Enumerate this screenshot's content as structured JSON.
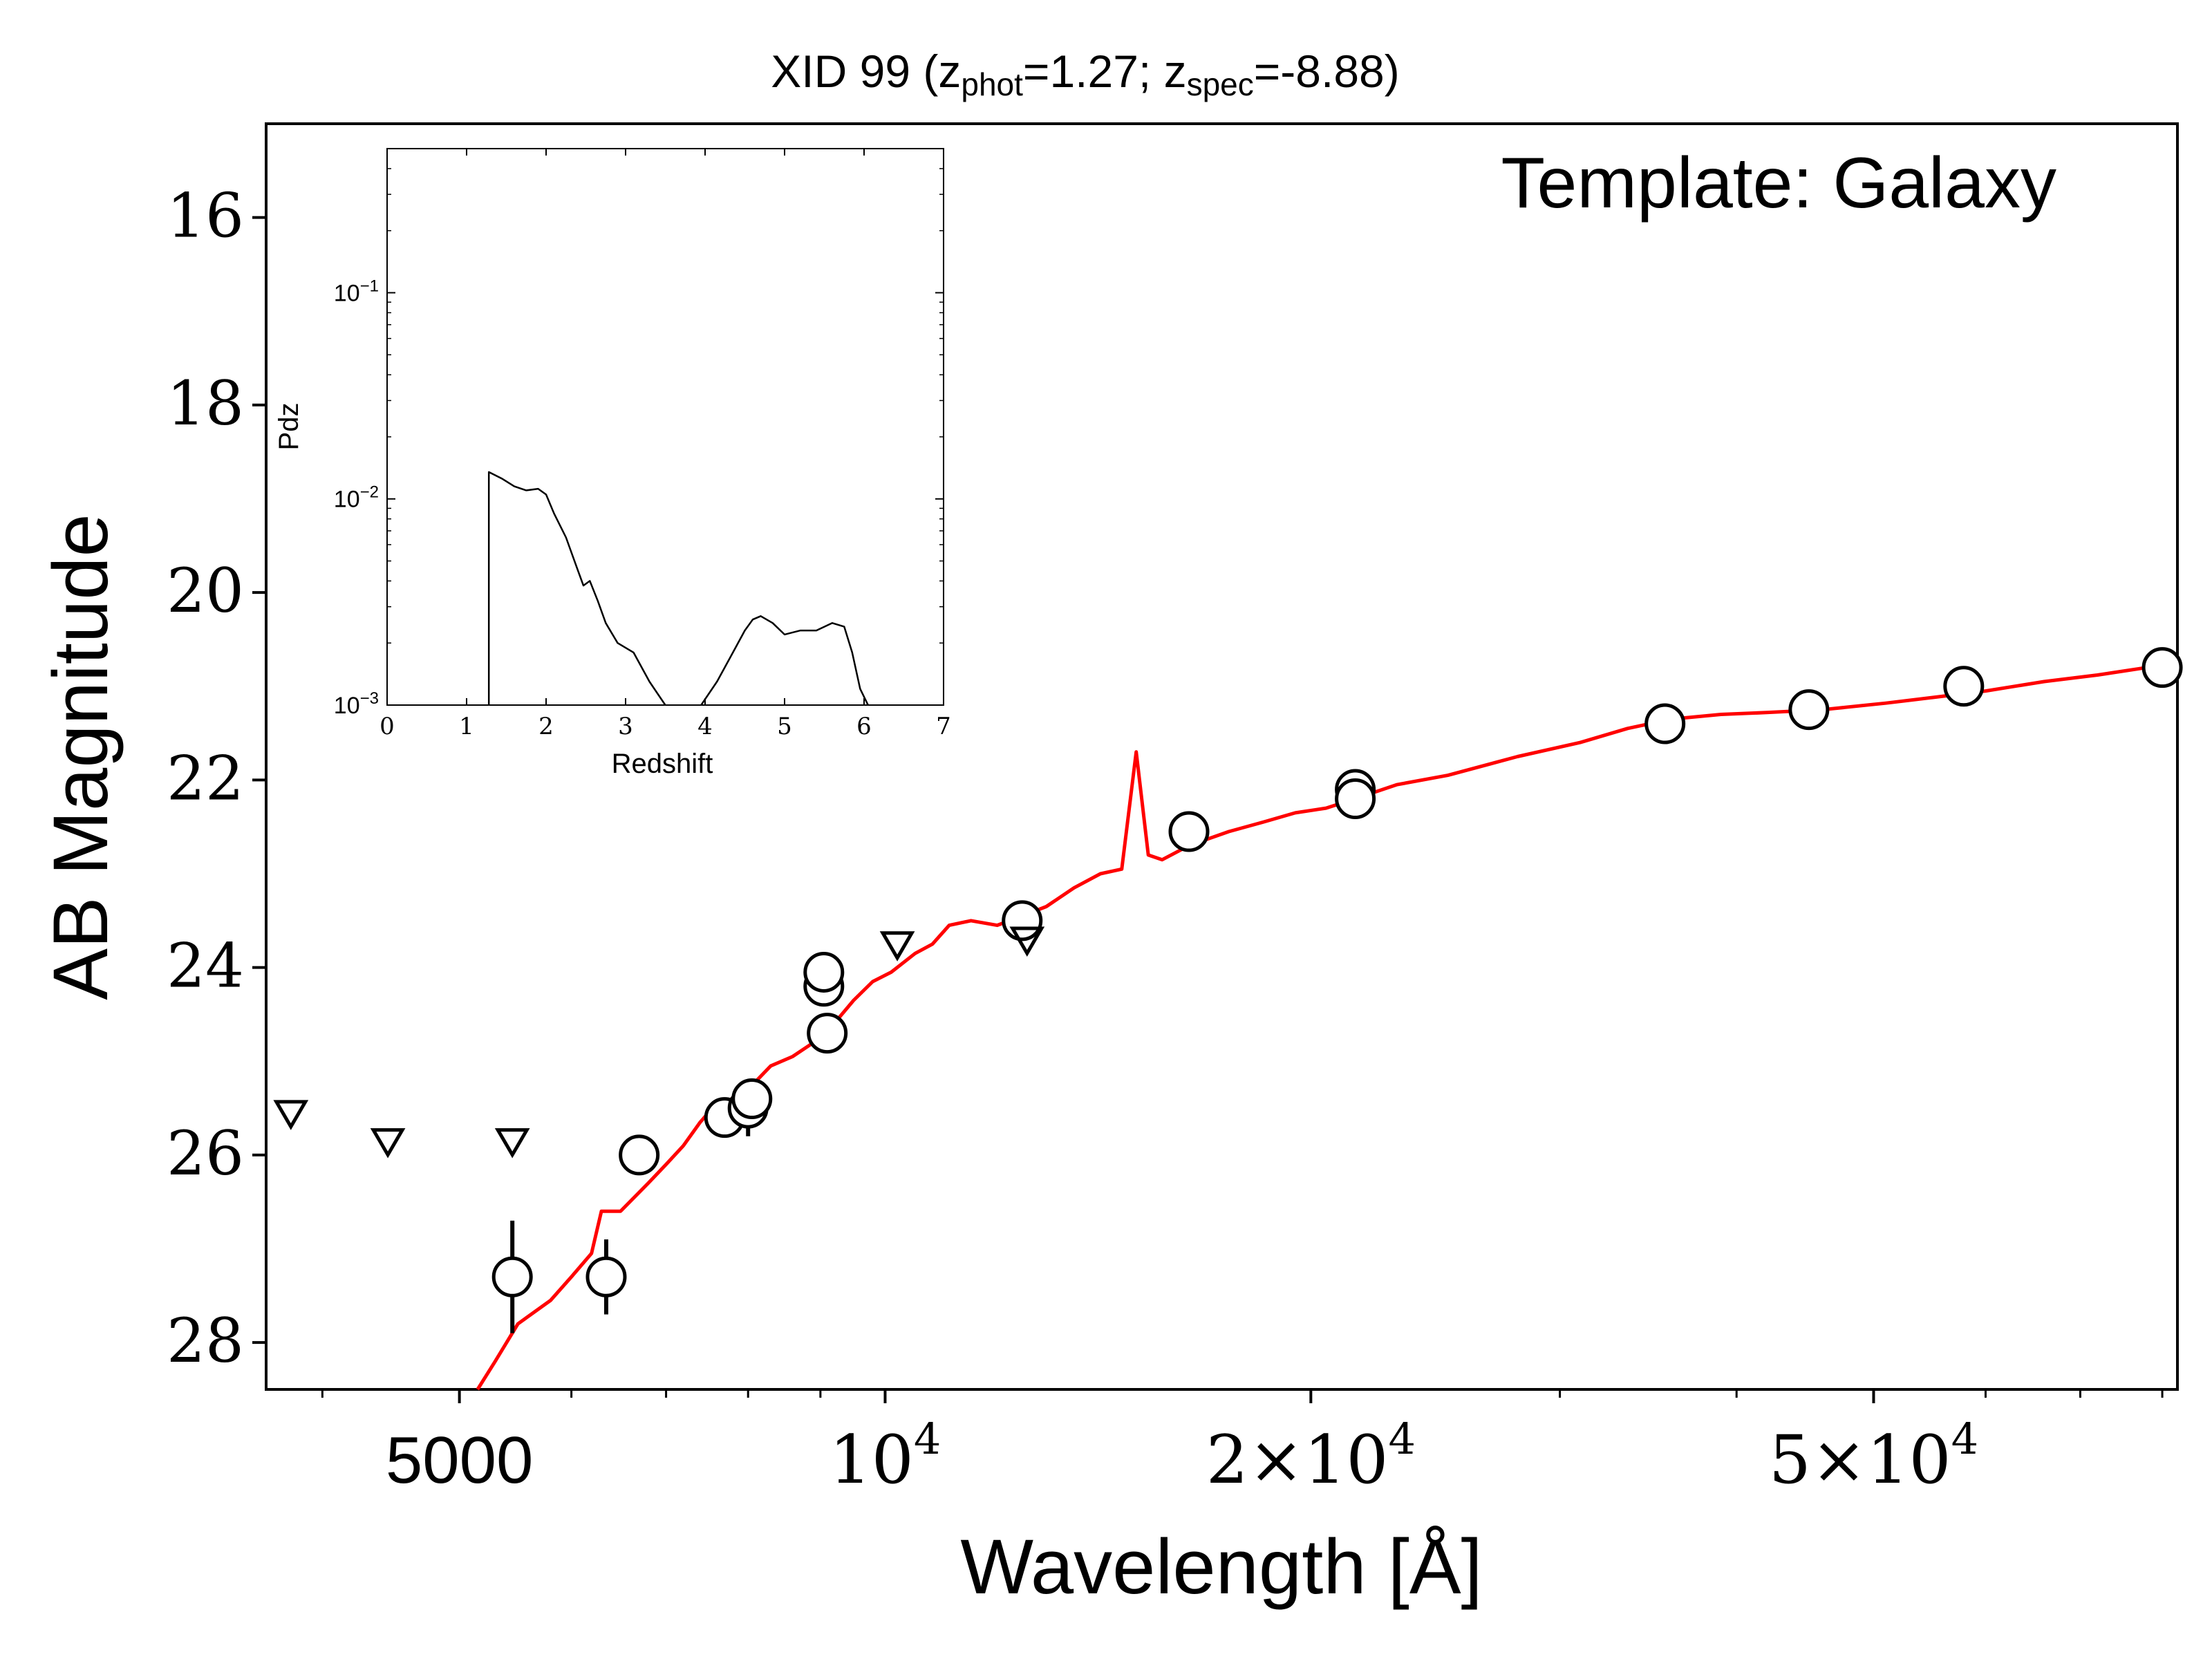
{
  "chart_data": [
    {
      "type": "scatter",
      "title_main": "XID 99 (z",
      "title_sub1": "phot",
      "title_mid": "=1.27; z",
      "title_sub2": "spec",
      "title_end": "=-8.88)",
      "annotation": "Template: Galaxy",
      "xlabel": "Wavelength [Å]",
      "ylabel": "AB Magnitude",
      "x_scale": "log",
      "xlim": [
        3650,
        82000
      ],
      "ylim": [
        28.5,
        15.0
      ],
      "y_inverted": true,
      "x_ticks": [
        {
          "value": 5000,
          "base": "5000",
          "exp": ""
        },
        {
          "value": 10000,
          "base": "10",
          "exp": "4"
        },
        {
          "value": 20000,
          "base": "2×10",
          "exp": "4"
        },
        {
          "value": 50000,
          "base": "5×10",
          "exp": "4"
        }
      ],
      "y_ticks": [
        {
          "value": 16,
          "label": "16"
        },
        {
          "value": 18,
          "label": "18"
        },
        {
          "value": 20,
          "label": "20"
        },
        {
          "value": 22,
          "label": "22"
        },
        {
          "value": 24,
          "label": "24"
        },
        {
          "value": 26,
          "label": "26"
        },
        {
          "value": 28,
          "label": "28"
        }
      ],
      "detections": [
        {
          "x": 5450,
          "y": 27.3,
          "err": 0.6
        },
        {
          "x": 6350,
          "y": 27.3,
          "err": 0.4
        },
        {
          "x": 6700,
          "y": 26.0,
          "err": 0.1
        },
        {
          "x": 7700,
          "y": 25.6,
          "err": 0.1
        },
        {
          "x": 8000,
          "y": 25.5,
          "err": 0.3
        },
        {
          "x": 8050,
          "y": 25.4,
          "err": 0.2
        },
        {
          "x": 9050,
          "y": 24.2,
          "err": 0.15
        },
        {
          "x": 9050,
          "y": 24.05,
          "err": 0.15
        },
        {
          "x": 9100,
          "y": 24.7,
          "err": 0.1
        },
        {
          "x": 12500,
          "y": 23.5,
          "err": 0.1
        },
        {
          "x": 16400,
          "y": 22.55,
          "err": 0.05
        },
        {
          "x": 21500,
          "y": 22.1,
          "err": 0.05
        },
        {
          "x": 21500,
          "y": 22.2,
          "err": 0.05
        },
        {
          "x": 35600,
          "y": 21.4,
          "err": 0.05
        },
        {
          "x": 45000,
          "y": 21.25,
          "err": 0.05
        },
        {
          "x": 57900,
          "y": 21.0,
          "err": 0.05
        },
        {
          "x": 80000,
          "y": 20.8,
          "err": 0.05
        }
      ],
      "upper_limits": [
        {
          "x": 3800,
          "y": 25.55
        },
        {
          "x": 4450,
          "y": 25.85
        },
        {
          "x": 5450,
          "y": 25.85
        },
        {
          "x": 10200,
          "y": 23.75
        },
        {
          "x": 12600,
          "y": 23.7
        }
      ],
      "template_color": "#ff0000",
      "template_curve": [
        [
          5150,
          28.5
        ],
        [
          5300,
          28.2
        ],
        [
          5500,
          27.8
        ],
        [
          5800,
          27.55
        ],
        [
          6000,
          27.3
        ],
        [
          6200,
          27.05
        ],
        [
          6300,
          26.6
        ],
        [
          6500,
          26.6
        ],
        [
          6800,
          26.3
        ],
        [
          7000,
          26.1
        ],
        [
          7200,
          25.9
        ],
        [
          7400,
          25.65
        ],
        [
          7600,
          25.45
        ],
        [
          7800,
          25.4
        ],
        [
          8000,
          25.3
        ],
        [
          8300,
          25.05
        ],
        [
          8600,
          24.95
        ],
        [
          8900,
          24.8
        ],
        [
          9200,
          24.6
        ],
        [
          9500,
          24.35
        ],
        [
          9800,
          24.15
        ],
        [
          10100,
          24.05
        ],
        [
          10500,
          23.85
        ],
        [
          10800,
          23.75
        ],
        [
          11100,
          23.55
        ],
        [
          11500,
          23.5
        ],
        [
          12000,
          23.55
        ],
        [
          12500,
          23.45
        ],
        [
          13000,
          23.35
        ],
        [
          13600,
          23.15
        ],
        [
          14200,
          23.0
        ],
        [
          14700,
          22.95
        ],
        [
          15050,
          21.7
        ],
        [
          15350,
          22.8
        ],
        [
          15700,
          22.85
        ],
        [
          16400,
          22.7
        ],
        [
          17500,
          22.55
        ],
        [
          18500,
          22.45
        ],
        [
          19500,
          22.35
        ],
        [
          20500,
          22.3
        ],
        [
          21500,
          22.2
        ],
        [
          23000,
          22.05
        ],
        [
          25000,
          21.95
        ],
        [
          28000,
          21.75
        ],
        [
          31000,
          21.6
        ],
        [
          33500,
          21.45
        ],
        [
          36000,
          21.35
        ],
        [
          39000,
          21.3
        ],
        [
          42000,
          21.28
        ],
        [
          46000,
          21.25
        ],
        [
          51000,
          21.18
        ],
        [
          55000,
          21.12
        ],
        [
          60000,
          21.05
        ],
        [
          66000,
          20.95
        ],
        [
          72000,
          20.88
        ],
        [
          78000,
          20.8
        ],
        [
          82000,
          20.75
        ]
      ]
    },
    {
      "type": "line",
      "xlabel": "Redshift",
      "ylabel": "Pdz",
      "x_scale": "linear",
      "y_scale": "log",
      "xlim": [
        0,
        7
      ],
      "ylim": [
        0.001,
        0.5
      ],
      "x_ticks": [
        "0",
        "1",
        "2",
        "3",
        "4",
        "5",
        "6",
        "7"
      ],
      "y_ticks": [
        {
          "value": 0.1,
          "base": "10",
          "exp": "−1"
        },
        {
          "value": 0.01,
          "base": "10",
          "exp": "−2"
        },
        {
          "value": 0.001,
          "base": "10",
          "exp": "−3"
        }
      ],
      "pdz_segments": [
        [
          [
            1.28,
            0.001
          ],
          [
            1.28,
            0.0135
          ],
          [
            1.45,
            0.0125
          ],
          [
            1.6,
            0.0115
          ],
          [
            1.75,
            0.011
          ],
          [
            1.9,
            0.0112
          ],
          [
            2.0,
            0.0105
          ],
          [
            2.1,
            0.0085
          ],
          [
            2.25,
            0.0065
          ],
          [
            2.4,
            0.0045
          ],
          [
            2.47,
            0.0038
          ],
          [
            2.55,
            0.004
          ],
          [
            2.65,
            0.0032
          ],
          [
            2.75,
            0.0025
          ],
          [
            2.9,
            0.002
          ],
          [
            3.1,
            0.0018
          ],
          [
            3.3,
            0.0013
          ],
          [
            3.5,
            0.001
          ]
        ],
        [
          [
            3.95,
            0.001
          ],
          [
            4.15,
            0.0013
          ],
          [
            4.35,
            0.0018
          ],
          [
            4.5,
            0.0023
          ],
          [
            4.6,
            0.0026
          ],
          [
            4.7,
            0.0027
          ],
          [
            4.85,
            0.0025
          ],
          [
            5.0,
            0.0022
          ],
          [
            5.2,
            0.0023
          ],
          [
            5.4,
            0.0023
          ],
          [
            5.6,
            0.0025
          ],
          [
            5.75,
            0.0024
          ],
          [
            5.85,
            0.0018
          ],
          [
            5.95,
            0.0012
          ],
          [
            6.05,
            0.001
          ]
        ]
      ]
    }
  ]
}
